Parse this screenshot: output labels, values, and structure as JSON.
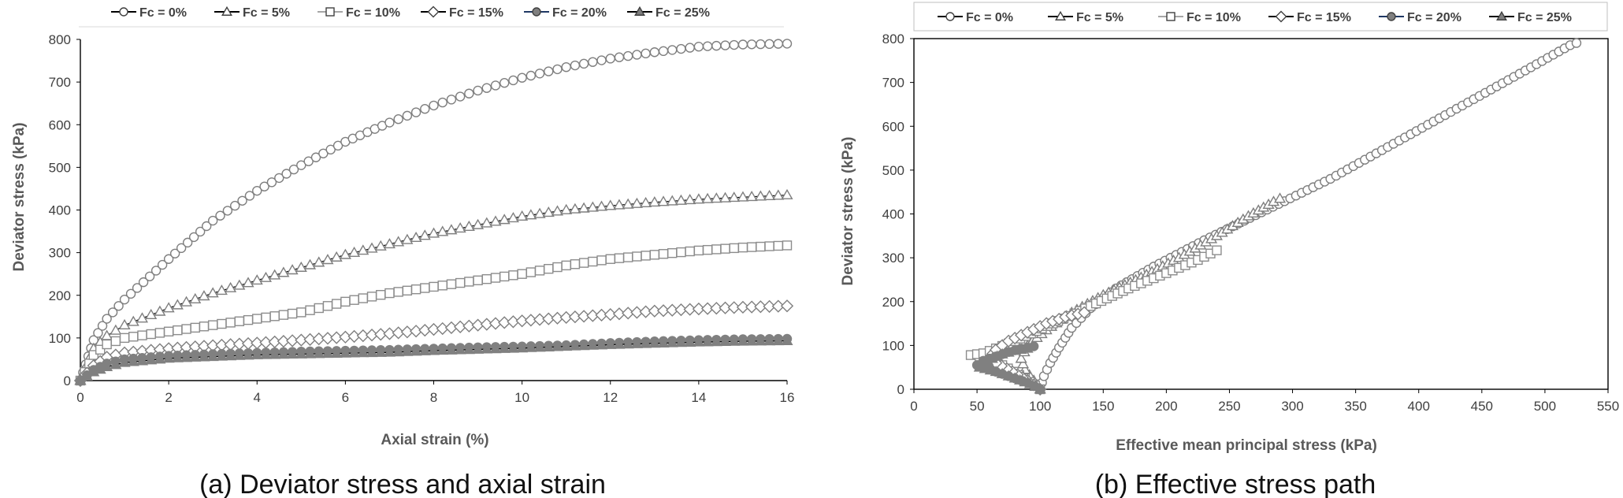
{
  "legend_labels": [
    "Fc = 0%",
    "Fc = 5%",
    "Fc = 10%",
    "Fc = 15%",
    "Fc = 20%",
    "Fc = 25%"
  ],
  "series_styles": [
    {
      "marker": "circle",
      "line": "#000000",
      "fill": "#ffffff",
      "stroke": "#7f7f7f"
    },
    {
      "marker": "triangle",
      "line": "#000000",
      "fill": "#ffffff",
      "stroke": "#7f7f7f"
    },
    {
      "marker": "square",
      "line": "#a6a6a6",
      "fill": "#ffffff",
      "stroke": "#8c8c8c"
    },
    {
      "marker": "diamond",
      "line": "#000000",
      "fill": "#ffffff",
      "stroke": "#7f7f7f"
    },
    {
      "marker": "circle",
      "line": "#1f3864",
      "fill": "#808080",
      "stroke": "#808080"
    },
    {
      "marker": "triangle",
      "line": "#000000",
      "fill": "#808080",
      "stroke": "#808080"
    }
  ],
  "chart_data": [
    {
      "type": "scatter",
      "caption": "(a) Deviator stress and axial strain",
      "xlabel": "Axial strain (%)",
      "ylabel": "Deviator stress (kPa)",
      "xlim": [
        0,
        16
      ],
      "ylim": [
        0,
        800
      ],
      "xticks": [
        0,
        2,
        4,
        6,
        8,
        10,
        12,
        14,
        16
      ],
      "yticks": [
        0,
        100,
        200,
        300,
        400,
        500,
        600,
        700,
        800
      ],
      "gridlines": false,
      "legend_position": "top",
      "series": [
        {
          "name": "Fc = 0%",
          "points": [
            [
              0,
              0
            ],
            [
              0.3,
              95
            ],
            [
              0.6,
              145
            ],
            [
              1,
              190
            ],
            [
              2,
              285
            ],
            [
              3,
              375
            ],
            [
              4,
              445
            ],
            [
              5,
              505
            ],
            [
              6,
              560
            ],
            [
              7,
              605
            ],
            [
              8,
              645
            ],
            [
              9,
              680
            ],
            [
              10,
              710
            ],
            [
              11,
              735
            ],
            [
              12,
              755
            ],
            [
              13,
              770
            ],
            [
              14,
              783
            ],
            [
              15,
              788
            ],
            [
              16,
              790
            ]
          ]
        },
        {
          "name": "Fc = 5%",
          "points": [
            [
              0,
              0
            ],
            [
              0.3,
              75
            ],
            [
              0.6,
              105
            ],
            [
              1,
              130
            ],
            [
              2,
              170
            ],
            [
              3,
              205
            ],
            [
              4,
              235
            ],
            [
              5,
              265
            ],
            [
              6,
              295
            ],
            [
              7,
              320
            ],
            [
              8,
              345
            ],
            [
              9,
              365
            ],
            [
              10,
              385
            ],
            [
              11,
              400
            ],
            [
              12,
              410
            ],
            [
              13,
              418
            ],
            [
              14,
              425
            ],
            [
              15,
              430
            ],
            [
              16,
              435
            ]
          ]
        },
        {
          "name": "Fc = 10%",
          "points": [
            [
              0,
              0
            ],
            [
              0.3,
              60
            ],
            [
              0.6,
              85
            ],
            [
              1,
              100
            ],
            [
              2,
              115
            ],
            [
              3,
              130
            ],
            [
              4,
              145
            ],
            [
              5,
              160
            ],
            [
              6,
              185
            ],
            [
              7,
              205
            ],
            [
              8,
              220
            ],
            [
              9,
              235
            ],
            [
              10,
              250
            ],
            [
              11,
              270
            ],
            [
              12,
              285
            ],
            [
              13,
              295
            ],
            [
              14,
              305
            ],
            [
              15,
              312
            ],
            [
              16,
              317
            ]
          ]
        },
        {
          "name": "Fc = 15%",
          "points": [
            [
              0,
              0
            ],
            [
              0.3,
              35
            ],
            [
              0.6,
              55
            ],
            [
              1,
              65
            ],
            [
              2,
              75
            ],
            [
              3,
              82
            ],
            [
              4,
              88
            ],
            [
              5,
              95
            ],
            [
              6,
              102
            ],
            [
              7,
              110
            ],
            [
              8,
              120
            ],
            [
              9,
              130
            ],
            [
              10,
              140
            ],
            [
              11,
              148
            ],
            [
              12,
              155
            ],
            [
              13,
              163
            ],
            [
              14,
              168
            ],
            [
              15,
              172
            ],
            [
              16,
              175
            ]
          ]
        },
        {
          "name": "Fc = 20%",
          "points": [
            [
              0,
              0
            ],
            [
              0.3,
              25
            ],
            [
              0.6,
              40
            ],
            [
              1,
              50
            ],
            [
              2,
              58
            ],
            [
              3,
              62
            ],
            [
              4,
              65
            ],
            [
              5,
              68
            ],
            [
              6,
              70
            ],
            [
              7,
              72
            ],
            [
              8,
              75
            ],
            [
              9,
              78
            ],
            [
              10,
              80
            ],
            [
              11,
              83
            ],
            [
              12,
              88
            ],
            [
              13,
              92
            ],
            [
              14,
              95
            ],
            [
              15,
              97
            ],
            [
              16,
              98
            ]
          ]
        },
        {
          "name": "Fc = 25%",
          "points": [
            [
              0,
              0
            ],
            [
              0.3,
              20
            ],
            [
              0.6,
              32
            ],
            [
              1,
              42
            ],
            [
              2,
              52
            ],
            [
              3,
              56
            ],
            [
              4,
              60
            ],
            [
              5,
              62
            ],
            [
              6,
              64
            ],
            [
              7,
              66
            ],
            [
              8,
              70
            ],
            [
              9,
              73
            ],
            [
              10,
              76
            ],
            [
              11,
              80
            ],
            [
              12,
              84
            ],
            [
              13,
              87
            ],
            [
              14,
              90
            ],
            [
              15,
              92
            ],
            [
              16,
              93
            ]
          ]
        }
      ]
    },
    {
      "type": "scatter",
      "caption": "(b) Effective stress path",
      "xlabel": "Effective mean principal stress (kPa)",
      "ylabel": "Deviator stress (kPa)",
      "xlim": [
        0,
        550
      ],
      "ylim": [
        0,
        800
      ],
      "xticks": [
        0,
        50,
        100,
        150,
        200,
        250,
        300,
        350,
        400,
        450,
        500,
        550
      ],
      "yticks": [
        0,
        100,
        200,
        300,
        400,
        500,
        600,
        700,
        800
      ],
      "gridlines": false,
      "legend_position": "top",
      "series": [
        {
          "name": "Fc = 0%",
          "points": [
            [
              100,
              0
            ],
            [
              103,
              30
            ],
            [
              108,
              60
            ],
            [
              115,
              95
            ],
            [
              125,
              140
            ],
            [
              140,
              185
            ],
            [
              160,
              230
            ],
            [
              190,
              280
            ],
            [
              230,
              340
            ],
            [
              280,
              410
            ],
            [
              330,
              480
            ],
            [
              380,
              560
            ],
            [
              430,
              640
            ],
            [
              480,
              720
            ],
            [
              520,
              785
            ],
            [
              525,
              790
            ]
          ]
        },
        {
          "name": "Fc = 5%",
          "points": [
            [
              100,
              0
            ],
            [
              95,
              20
            ],
            [
              88,
              45
            ],
            [
              85,
              70
            ],
            [
              90,
              100
            ],
            [
              105,
              135
            ],
            [
              125,
              175
            ],
            [
              150,
              215
            ],
            [
              180,
              255
            ],
            [
              210,
              300
            ],
            [
              240,
              350
            ],
            [
              265,
              395
            ],
            [
              285,
              428
            ],
            [
              290,
              435
            ]
          ]
        },
        {
          "name": "Fc = 10%",
          "points": [
            [
              100,
              0
            ],
            [
              88,
              25
            ],
            [
              70,
              55
            ],
            [
              52,
              75
            ],
            [
              45,
              78
            ],
            [
              55,
              82
            ],
            [
              80,
              110
            ],
            [
              110,
              150
            ],
            [
              140,
              190
            ],
            [
              170,
              230
            ],
            [
              200,
              265
            ],
            [
              225,
              295
            ],
            [
              240,
              317
            ]
          ]
        },
        {
          "name": "Fc = 15%",
          "points": [
            [
              100,
              0
            ],
            [
              90,
              20
            ],
            [
              78,
              40
            ],
            [
              65,
              60
            ],
            [
              60,
              72
            ],
            [
              65,
              90
            ],
            [
              75,
              110
            ],
            [
              90,
              130
            ],
            [
              105,
              150
            ],
            [
              120,
              165
            ],
            [
              135,
              175
            ]
          ]
        },
        {
          "name": "Fc = 20%",
          "points": [
            [
              100,
              0
            ],
            [
              90,
              15
            ],
            [
              75,
              30
            ],
            [
              60,
              45
            ],
            [
              50,
              55
            ],
            [
              55,
              65
            ],
            [
              65,
              75
            ],
            [
              75,
              85
            ],
            [
              85,
              93
            ],
            [
              95,
              98
            ]
          ]
        },
        {
          "name": "Fc = 25%",
          "points": [
            [
              100,
              0
            ],
            [
              92,
              12
            ],
            [
              80,
              25
            ],
            [
              65,
              40
            ],
            [
              52,
              50
            ],
            [
              55,
              60
            ],
            [
              62,
              70
            ],
            [
              70,
              80
            ],
            [
              80,
              88
            ],
            [
              90,
              93
            ]
          ]
        }
      ]
    }
  ]
}
